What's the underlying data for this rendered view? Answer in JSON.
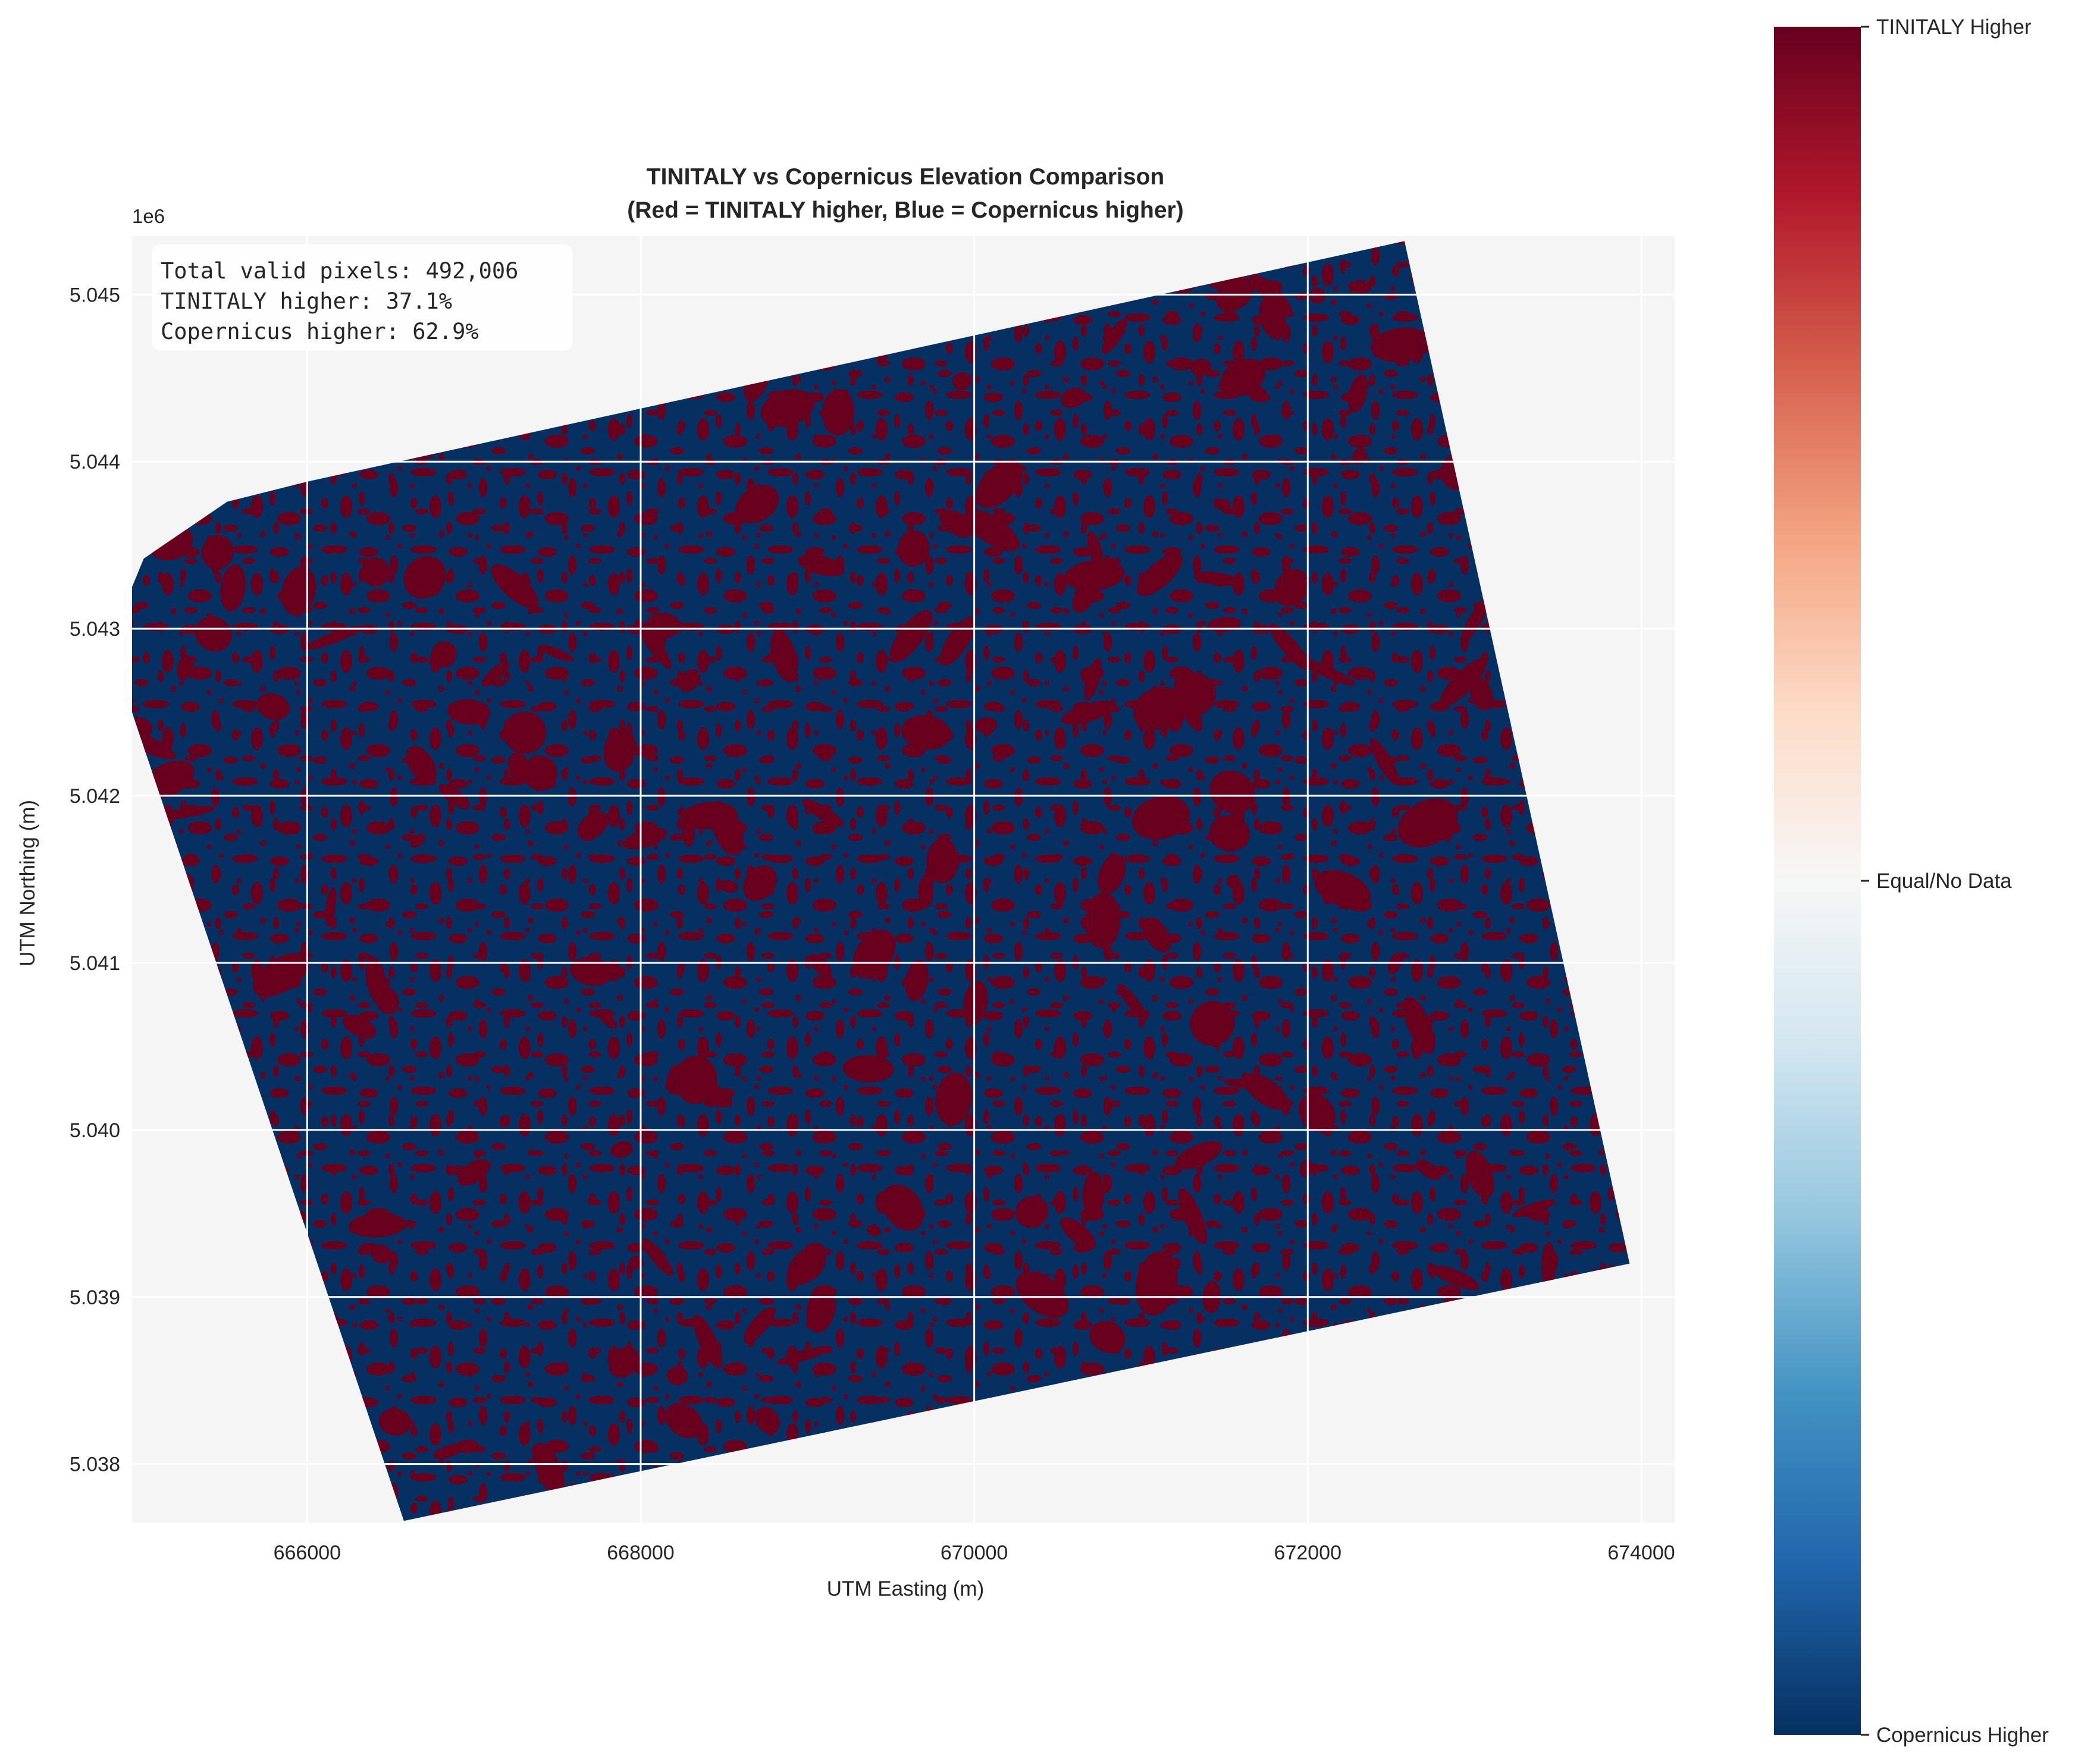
{
  "chart_data": {
    "type": "heatmap",
    "title_lines": [
      "TINITALY vs Copernicus Elevation Comparison",
      "(Red = TINITALY higher, Blue = Copernicus higher)"
    ],
    "xlabel": "UTM Easting (m)",
    "ylabel": "UTM Northing (m)",
    "y_offset_label": "1e6",
    "xlim": [
      664950,
      674200
    ],
    "ylim": [
      5037650,
      5045350
    ],
    "x_ticks": [
      666000,
      668000,
      670000,
      672000,
      674000
    ],
    "x_tick_labels": [
      "666000",
      "668000",
      "670000",
      "672000",
      "674000"
    ],
    "y_ticks": [
      5038000,
      5039000,
      5040000,
      5041000,
      5042000,
      5043000,
      5044000,
      5045000
    ],
    "y_tick_labels": [
      "5.038",
      "5.039",
      "5.040",
      "5.041",
      "5.042",
      "5.043",
      "5.044",
      "5.045"
    ],
    "grid": true,
    "footprint_polygon": [
      [
        665020,
        5043420
      ],
      [
        665520,
        5043760
      ],
      [
        666000,
        5043880
      ],
      [
        672580,
        5045320
      ],
      [
        673930,
        5039200
      ],
      [
        666580,
        5037660
      ],
      [
        664950,
        5042500
      ],
      [
        664950,
        5043250
      ]
    ],
    "categories": [
      {
        "label": "Copernicus higher",
        "color": "#053061",
        "share_pct": 62.9
      },
      {
        "label": "TINITALY higher",
        "color": "#67001f",
        "share_pct": 37.1
      }
    ],
    "stats_box": [
      "Total valid pixels: 492,006",
      "TINITALY higher: 37.1%",
      "Copernicus higher: 62.9%"
    ],
    "colorbar": {
      "colormap": "RdBu_r",
      "range": [
        -1,
        1
      ],
      "stops": [
        "#053061",
        "#2166ac",
        "#4393c3",
        "#92c5de",
        "#d1e5f0",
        "#f7f7f7",
        "#fddbc7",
        "#f4a582",
        "#d6604d",
        "#b2182b",
        "#67001f"
      ],
      "ticks": [
        1,
        0,
        -1
      ],
      "tick_labels": [
        "TINITALY Higher",
        "Equal/No Data",
        "Copernicus Higher"
      ]
    },
    "legend": "colorbar on right"
  }
}
